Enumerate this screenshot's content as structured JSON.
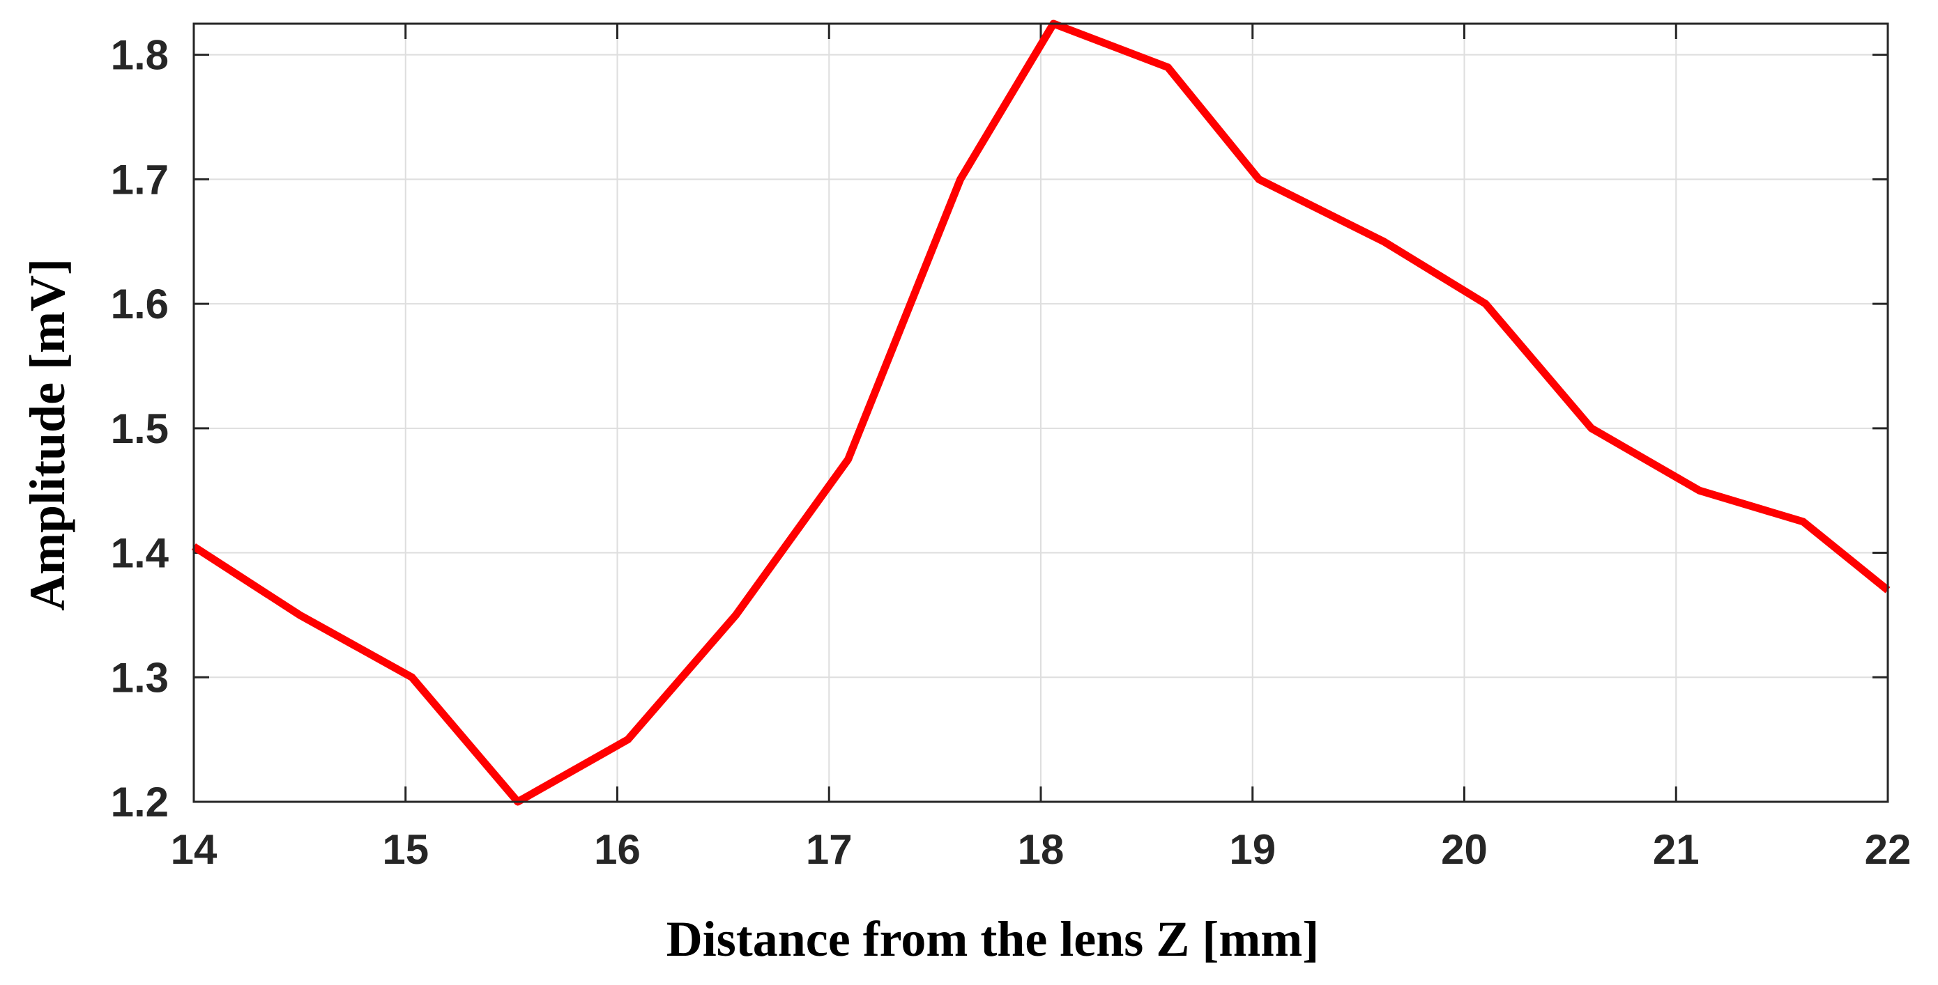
{
  "chart_data": {
    "type": "line",
    "title": "",
    "xlabel": "Distance from the lens Z [mm]",
    "ylabel": "Amplitude [mV]",
    "xlim": [
      14,
      22
    ],
    "ylim": [
      1.2,
      1.825
    ],
    "x_ticks": [
      14,
      15,
      16,
      17,
      18,
      19,
      20,
      21,
      22
    ],
    "y_ticks": [
      1.2,
      1.3,
      1.4,
      1.5,
      1.6,
      1.7,
      1.8
    ],
    "x_tick_labels": [
      "14",
      "15",
      "16",
      "17",
      "18",
      "19",
      "20",
      "21",
      "22"
    ],
    "y_tick_labels": [
      "1.2",
      "1.3",
      "1.4",
      "1.5",
      "1.6",
      "1.7",
      "1.8"
    ],
    "grid": true,
    "series": [
      {
        "color": "#ff0000",
        "x": [
          14.0,
          14.5,
          15.03,
          15.53,
          16.05,
          16.56,
          17.09,
          17.62,
          18.06,
          18.6,
          19.03,
          19.62,
          20.1,
          20.6,
          21.11,
          21.6,
          22.0
        ],
        "y": [
          1.405,
          1.35,
          1.3,
          1.2,
          1.25,
          1.35,
          1.475,
          1.7,
          1.825,
          1.79,
          1.7,
          1.65,
          1.6,
          1.5,
          1.45,
          1.425,
          1.37
        ]
      }
    ]
  }
}
